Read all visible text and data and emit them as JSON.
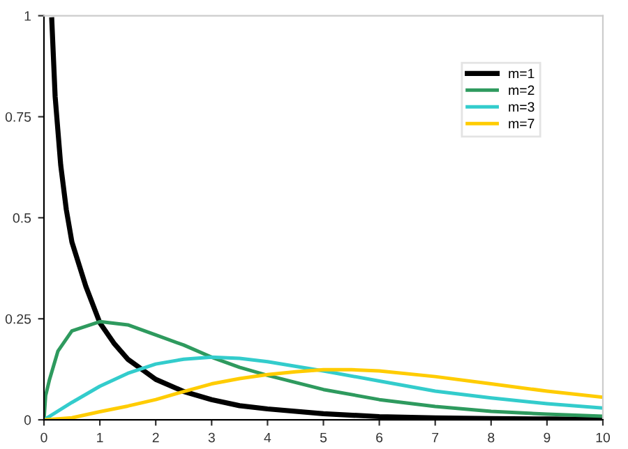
{
  "chart_data": {
    "type": "line",
    "xlim": [
      0,
      10
    ],
    "ylim": [
      0,
      1
    ],
    "xticks": [
      0,
      1,
      2,
      3,
      4,
      5,
      6,
      7,
      8,
      9,
      10
    ],
    "yticks": [
      0,
      0.25,
      0.5,
      0.75,
      1
    ],
    "grid": false,
    "legend": "top right",
    "marker": "none",
    "line_style": "solid",
    "series": [
      {
        "name": "m=1",
        "color": "#000000",
        "x": [
          0.14,
          0.2,
          0.3,
          0.4,
          0.5,
          0.75,
          1,
          1.25,
          1.5,
          1.75,
          2,
          2.5,
          3,
          3.5,
          4,
          5,
          6,
          7,
          8,
          9,
          10
        ],
        "values": [
          0.99,
          0.8,
          0.63,
          0.52,
          0.44,
          0.33,
          0.24,
          0.19,
          0.15,
          0.125,
          0.1,
          0.07,
          0.05,
          0.035,
          0.027,
          0.015,
          0.008,
          0.005,
          0.003,
          0.002,
          0.001
        ]
      },
      {
        "name": "m=2",
        "color": "#2e9a5e",
        "x": [
          0,
          0.03,
          0.1,
          0.25,
          0.5,
          1,
          1.5,
          2,
          2.5,
          3,
          3.5,
          4,
          5,
          6,
          7,
          8,
          9,
          10
        ],
        "values": [
          0,
          0.06,
          0.1,
          0.17,
          0.22,
          0.243,
          0.235,
          0.21,
          0.185,
          0.155,
          0.13,
          0.11,
          0.075,
          0.05,
          0.033,
          0.021,
          0.014,
          0.009
        ]
      },
      {
        "name": "m=3",
        "color": "#33cccc",
        "x": [
          0,
          0.5,
          1,
          1.5,
          2,
          2.5,
          3,
          3.5,
          4,
          5,
          6,
          7,
          8,
          9,
          10
        ],
        "values": [
          0,
          0.043,
          0.083,
          0.115,
          0.138,
          0.15,
          0.155,
          0.152,
          0.144,
          0.121,
          0.096,
          0.071,
          0.054,
          0.04,
          0.029
        ]
      },
      {
        "name": "m=7",
        "color": "#ffcc00",
        "x": [
          0,
          0.5,
          1,
          1.5,
          2,
          2.5,
          3,
          3.5,
          4,
          4.5,
          5,
          5.5,
          6,
          7,
          8,
          9,
          10
        ],
        "values": [
          0,
          0.005,
          0.02,
          0.034,
          0.05,
          0.07,
          0.089,
          0.102,
          0.112,
          0.119,
          0.124,
          0.124,
          0.121,
          0.107,
          0.089,
          0.071,
          0.056
        ]
      }
    ]
  }
}
